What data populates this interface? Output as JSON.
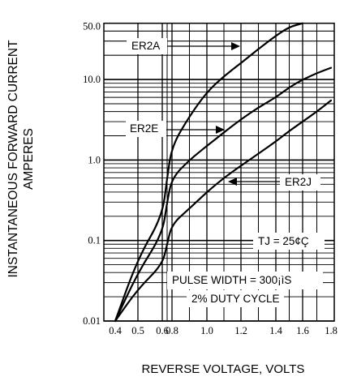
{
  "chart_data": {
    "type": "line",
    "xlabel": "REVERSE VOLTAGE, VOLTS",
    "ylabel_lines": [
      "INSTANTANEOUS FORWARD CURRENT",
      "AMPERES"
    ],
    "x_ticks": [
      0.4,
      0.5,
      0.6,
      0.8,
      1.0,
      1.2,
      1.4,
      1.6,
      1.8
    ],
    "x_tick_labels": [
      "0.4",
      "0.5",
      "0.6",
      "0.8",
      "1.0",
      "1.2",
      "1.4",
      "1.6",
      "1.8"
    ],
    "xlim": [
      0.4,
      1.8
    ],
    "y_scale": "log",
    "ylim": [
      0.01,
      50.0
    ],
    "y_ticks": [
      0.01,
      0.1,
      1.0,
      10.0,
      50.0
    ],
    "y_tick_labels": [
      "0.01",
      "0.1",
      "1.0",
      "10.0",
      "50.0"
    ],
    "grid": true,
    "series": [
      {
        "name": "ER2A",
        "x": [
          0.4,
          0.5,
          0.6,
          0.7,
          0.8,
          0.9,
          1.0,
          1.1,
          1.2,
          1.3,
          1.4,
          1.5,
          1.6
        ],
        "y": [
          0.01,
          0.06,
          0.2,
          0.6,
          1.5,
          3.5,
          7.0,
          11.0,
          16.0,
          24.0,
          35.0,
          45.0,
          55.0
        ]
      },
      {
        "name": "ER2E",
        "x": [
          0.4,
          0.5,
          0.6,
          0.7,
          0.8,
          0.9,
          1.0,
          1.1,
          1.2,
          1.3,
          1.4,
          1.5,
          1.6,
          1.7,
          1.8
        ],
        "y": [
          0.01,
          0.04,
          0.12,
          0.3,
          0.6,
          1.0,
          1.5,
          2.2,
          3.2,
          4.5,
          6.0,
          8.0,
          10.0,
          12.0,
          14.0
        ]
      },
      {
        "name": "ER2J",
        "x": [
          0.4,
          0.5,
          0.6,
          0.7,
          0.8,
          0.9,
          1.0,
          1.1,
          1.2,
          1.3,
          1.4,
          1.5,
          1.6,
          1.7,
          1.8
        ],
        "y": [
          0.01,
          0.025,
          0.05,
          0.09,
          0.16,
          0.25,
          0.4,
          0.6,
          0.85,
          1.2,
          1.7,
          2.3,
          3.0,
          4.0,
          5.5
        ]
      }
    ],
    "annotations": [
      "TJ = 25¢Ç",
      "PULSE WIDTH = 300¡ìS",
      "2% DUTY CYCLE"
    ]
  }
}
